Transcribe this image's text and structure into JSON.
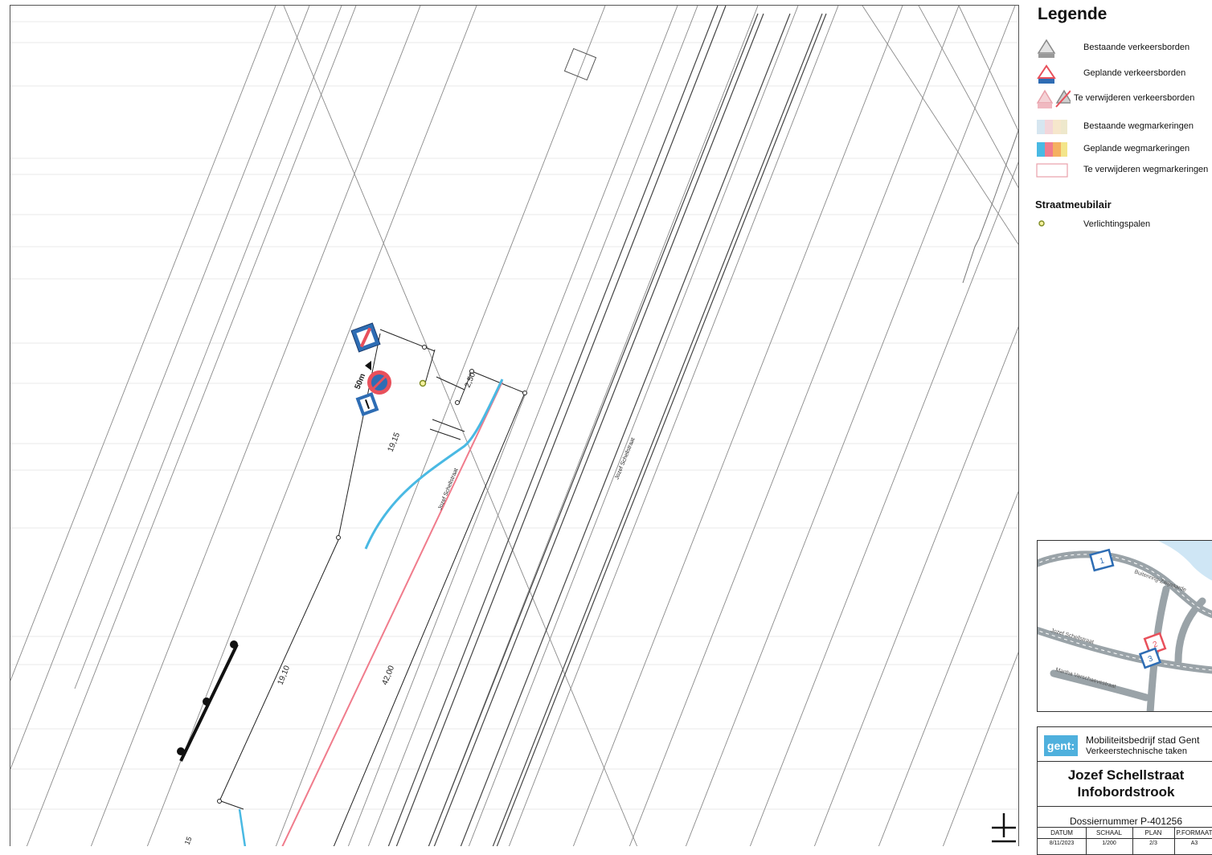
{
  "map": {
    "street_labels": [
      "Jozef Schellstraat",
      "Jozef Schellstraat"
    ],
    "dimensions": [
      "50m",
      "2,50",
      "19,15",
      "19,10",
      "42,00",
      "15"
    ],
    "scale_bar_label": ""
  },
  "legend": {
    "title": "Legende",
    "items": [
      {
        "label": "Bestaande verkeersborden",
        "icon": "existing-sign-icon"
      },
      {
        "label": "Geplande verkeersborden",
        "icon": "planned-sign-icon"
      },
      {
        "label": "Te verwijderen verkeersborden",
        "icon": "remove-sign-icon"
      },
      {
        "label": "Bestaande wegmarkeringen",
        "icon": "existing-marking-icon"
      },
      {
        "label": "Geplande wegmarkeringen",
        "icon": "planned-marking-icon"
      },
      {
        "label": "Te verwijderen wegmarkeringen",
        "icon": "remove-marking-icon"
      }
    ],
    "section_title": "Straatmeubilair",
    "section_items": [
      {
        "label": "Verlichtingspalen",
        "icon": "light-pole-icon"
      }
    ]
  },
  "inset": {
    "labels": [
      "Buitenring-Zwijnaarde",
      "Jozef Schellstraat",
      "Martha Verschaevestraat"
    ],
    "markers": [
      "1",
      "2",
      "3"
    ]
  },
  "titleblock": {
    "logo": "gent:",
    "org_line1": "Mobiliteitsbedrijf stad Gent",
    "org_line2": "Verkeerstechnische taken",
    "title_line1": "Jozef Schellstraat",
    "title_line2": "Infobordstrook",
    "dossier": "Dossiernummer P-401256",
    "headers": [
      "DATUM",
      "SCHAAL",
      "PLAN",
      "P.FORMAAT"
    ],
    "values": [
      "8/11/2023",
      "1/200",
      "2/3",
      "A3"
    ]
  },
  "colors": {
    "planned_red": "#e8505b",
    "planned_blue": "#2e6db4",
    "marking_cyan": "#49b9e3",
    "marking_pink": "#f07c8c"
  }
}
